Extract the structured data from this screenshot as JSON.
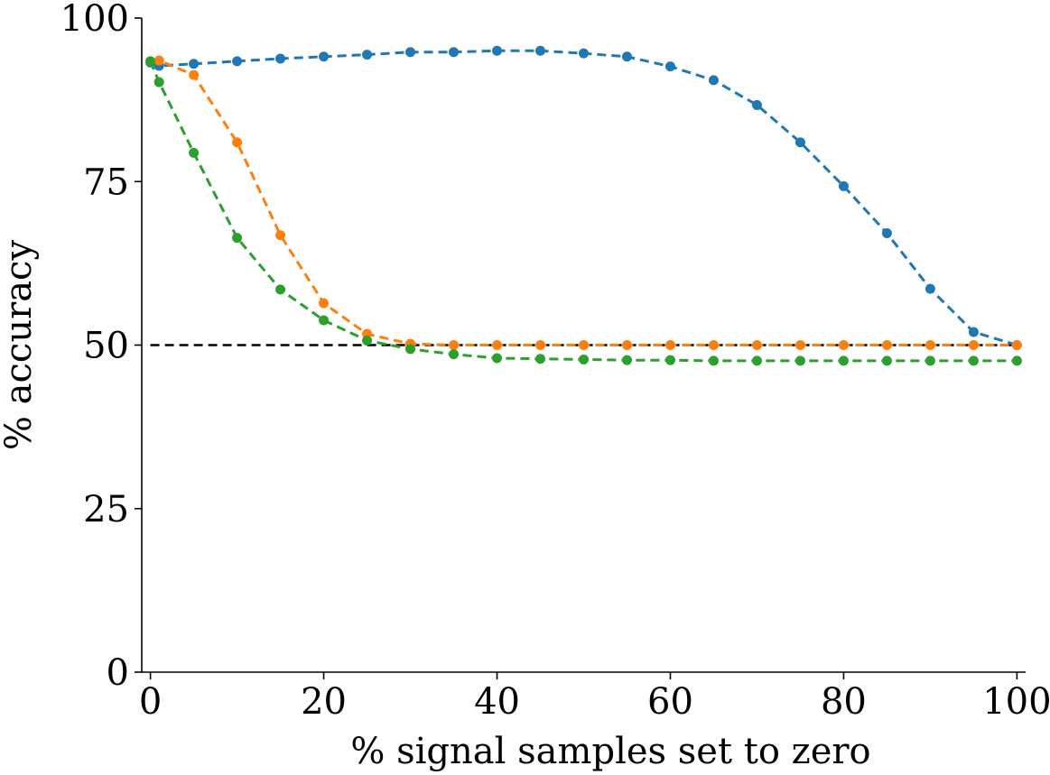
{
  "chart_data": {
    "type": "line",
    "xlabel": "% signal samples set to zero",
    "ylabel": "% accuracy",
    "xlim": [
      -1,
      101
    ],
    "ylim": [
      0,
      100
    ],
    "xticks": [
      0,
      20,
      40,
      60,
      80,
      100
    ],
    "yticks": [
      0,
      25,
      50,
      75,
      100
    ],
    "grid": false,
    "reference_line": {
      "y": 50,
      "color": "#000000",
      "style": "dashed"
    },
    "x": [
      1,
      5,
      10,
      15,
      20,
      25,
      30,
      35,
      40,
      45,
      50,
      55,
      60,
      65,
      70,
      75,
      80,
      85,
      90,
      95,
      100
    ],
    "series": [
      {
        "color": "#1f77b4",
        "x0": 0,
        "y0": 93.2,
        "values": [
          92.7,
          93.0,
          93.4,
          93.8,
          94.1,
          94.4,
          94.8,
          94.8,
          95.0,
          95.0,
          94.6,
          94.1,
          92.6,
          90.5,
          86.7,
          81.0,
          74.3,
          67.1,
          58.6,
          52.0,
          50.0
        ]
      },
      {
        "color": "#ff7f0e",
        "x0": 0,
        "y0": 93.4,
        "values": [
          93.5,
          91.3,
          81.0,
          66.8,
          56.4,
          51.7,
          50.2,
          50.0,
          50.0,
          50.0,
          50.0,
          50.0,
          50.0,
          50.0,
          50.0,
          50.0,
          50.0,
          50.0,
          50.0,
          50.0,
          50.0
        ]
      },
      {
        "color": "#2ca02c",
        "x0": 0,
        "y0": 93.4,
        "values": [
          90.2,
          79.4,
          66.4,
          58.5,
          53.8,
          50.7,
          49.4,
          48.6,
          48.0,
          47.9,
          47.8,
          47.7,
          47.7,
          47.6,
          47.6,
          47.6,
          47.6,
          47.6,
          47.6,
          47.6,
          47.6
        ]
      }
    ]
  }
}
